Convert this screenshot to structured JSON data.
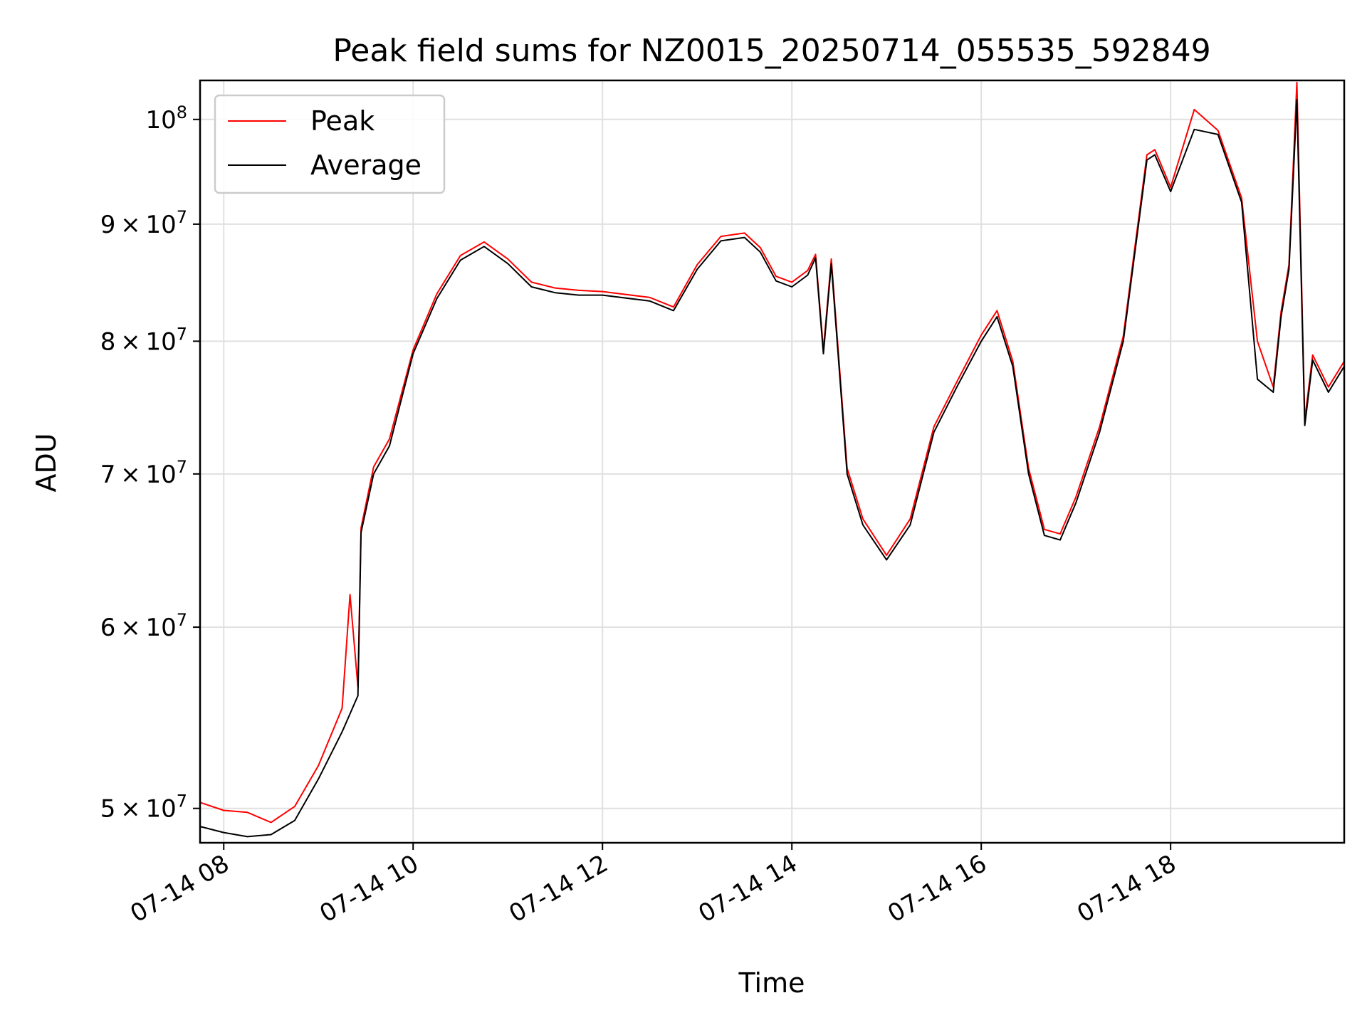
{
  "chart_data": {
    "type": "line",
    "title": "Peak field sums for NZ0015_20250714_055535_592849",
    "xlabel": "Time",
    "ylabel": "ADU",
    "y_scale": "log",
    "ylim": [
      48300000,
      104000000
    ],
    "xlim": [
      "2025-07-14 07:45",
      "2025-07-14 19:50"
    ],
    "grid": true,
    "legend_position": "top-left",
    "x_ticks": [
      {
        "label": "07-14 08",
        "value": "2025-07-14 08:00"
      },
      {
        "label": "07-14 10",
        "value": "2025-07-14 10:00"
      },
      {
        "label": "07-14 12",
        "value": "2025-07-14 12:00"
      },
      {
        "label": "07-14 14",
        "value": "2025-07-14 14:00"
      },
      {
        "label": "07-14 16",
        "value": "2025-07-14 16:00"
      },
      {
        "label": "07-14 18",
        "value": "2025-07-14 18:00"
      }
    ],
    "y_ticks": [
      {
        "value": 50000000,
        "mantissa": "5",
        "base": "10",
        "exp": "7"
      },
      {
        "value": 60000000,
        "mantissa": "6",
        "base": "10",
        "exp": "7"
      },
      {
        "value": 70000000,
        "mantissa": "7",
        "base": "10",
        "exp": "7"
      },
      {
        "value": 80000000,
        "mantissa": "8",
        "base": "10",
        "exp": "7"
      },
      {
        "value": 90000000,
        "mantissa": "9",
        "base": "10",
        "exp": "7"
      },
      {
        "value": 100000000,
        "mantissa": "",
        "base": "10",
        "exp": "8"
      }
    ],
    "series": [
      {
        "name": "Average",
        "color": "#000000",
        "x": [
          "2025-07-14 07:45",
          "2025-07-14 08:00",
          "2025-07-14 08:15",
          "2025-07-14 08:30",
          "2025-07-14 08:45",
          "2025-07-14 09:00",
          "2025-07-14 09:15",
          "2025-07-14 09:25",
          "2025-07-14 09:27",
          "2025-07-14 09:35",
          "2025-07-14 09:45",
          "2025-07-14 10:00",
          "2025-07-14 10:15",
          "2025-07-14 10:30",
          "2025-07-14 10:45",
          "2025-07-14 11:00",
          "2025-07-14 11:15",
          "2025-07-14 11:30",
          "2025-07-14 11:45",
          "2025-07-14 12:00",
          "2025-07-14 12:30",
          "2025-07-14 12:45",
          "2025-07-14 13:00",
          "2025-07-14 13:15",
          "2025-07-14 13:30",
          "2025-07-14 13:40",
          "2025-07-14 13:50",
          "2025-07-14 14:00",
          "2025-07-14 14:10",
          "2025-07-14 14:15",
          "2025-07-14 14:20",
          "2025-07-14 14:25",
          "2025-07-14 14:35",
          "2025-07-14 14:45",
          "2025-07-14 15:00",
          "2025-07-14 15:15",
          "2025-07-14 15:30",
          "2025-07-14 15:45",
          "2025-07-14 16:00",
          "2025-07-14 16:10",
          "2025-07-14 16:20",
          "2025-07-14 16:30",
          "2025-07-14 16:40",
          "2025-07-14 16:50",
          "2025-07-14 17:00",
          "2025-07-14 17:15",
          "2025-07-14 17:30",
          "2025-07-14 17:45",
          "2025-07-14 17:50",
          "2025-07-14 18:00",
          "2025-07-14 18:15",
          "2025-07-14 18:30",
          "2025-07-14 18:45",
          "2025-07-14 18:55",
          "2025-07-14 19:05",
          "2025-07-14 19:10",
          "2025-07-14 19:15",
          "2025-07-14 19:20",
          "2025-07-14 19:25",
          "2025-07-14 19:30",
          "2025-07-14 19:40",
          "2025-07-14 19:50"
        ],
        "values": [
          49100000,
          48800000,
          48600000,
          48700000,
          49400000,
          51500000,
          54000000,
          56000000,
          66000000,
          70000000,
          72000000,
          79000000,
          83500000,
          86800000,
          88000000,
          86500000,
          84500000,
          84000000,
          83800000,
          83800000,
          83300000,
          82500000,
          86000000,
          88500000,
          88800000,
          87500000,
          85000000,
          84500000,
          85500000,
          87000000,
          79000000,
          86500000,
          70000000,
          66500000,
          64200000,
          66500000,
          73000000,
          76500000,
          80000000,
          82000000,
          78000000,
          70000000,
          65800000,
          65500000,
          68000000,
          73000000,
          80000000,
          96000000,
          96500000,
          93000000,
          99000000,
          98500000,
          92000000,
          77000000,
          76000000,
          82000000,
          86000000,
          102000000,
          73500000,
          78500000,
          76000000,
          78000000
        ]
      },
      {
        "name": "Peak",
        "color": "#ff0000",
        "x": [
          "2025-07-14 07:45",
          "2025-07-14 08:00",
          "2025-07-14 08:15",
          "2025-07-14 08:30",
          "2025-07-14 08:45",
          "2025-07-14 09:00",
          "2025-07-14 09:15",
          "2025-07-14 09:20",
          "2025-07-14 09:25",
          "2025-07-14 09:27",
          "2025-07-14 09:35",
          "2025-07-14 09:45",
          "2025-07-14 10:00",
          "2025-07-14 10:15",
          "2025-07-14 10:30",
          "2025-07-14 10:45",
          "2025-07-14 11:00",
          "2025-07-14 11:15",
          "2025-07-14 11:30",
          "2025-07-14 11:45",
          "2025-07-14 12:00",
          "2025-07-14 12:30",
          "2025-07-14 12:45",
          "2025-07-14 13:00",
          "2025-07-14 13:15",
          "2025-07-14 13:30",
          "2025-07-14 13:40",
          "2025-07-14 13:50",
          "2025-07-14 14:00",
          "2025-07-14 14:10",
          "2025-07-14 14:15",
          "2025-07-14 14:20",
          "2025-07-14 14:25",
          "2025-07-14 14:35",
          "2025-07-14 14:45",
          "2025-07-14 15:00",
          "2025-07-14 15:15",
          "2025-07-14 15:30",
          "2025-07-14 15:45",
          "2025-07-14 16:00",
          "2025-07-14 16:10",
          "2025-07-14 16:20",
          "2025-07-14 16:30",
          "2025-07-14 16:40",
          "2025-07-14 16:50",
          "2025-07-14 17:00",
          "2025-07-14 17:15",
          "2025-07-14 17:30",
          "2025-07-14 17:45",
          "2025-07-14 17:50",
          "2025-07-14 18:00",
          "2025-07-14 18:15",
          "2025-07-14 18:30",
          "2025-07-14 18:45",
          "2025-07-14 18:55",
          "2025-07-14 19:05",
          "2025-07-14 19:10",
          "2025-07-14 19:15",
          "2025-07-14 19:20",
          "2025-07-14 19:25",
          "2025-07-14 19:30",
          "2025-07-14 19:40",
          "2025-07-14 19:50"
        ],
        "values": [
          50300000,
          49900000,
          49800000,
          49300000,
          50100000,
          52200000,
          55300000,
          62000000,
          56500000,
          66300000,
          70500000,
          72500000,
          79300000,
          83900000,
          87200000,
          88400000,
          86900000,
          84900000,
          84400000,
          84200000,
          84100000,
          83600000,
          82800000,
          86400000,
          88900000,
          89200000,
          87900000,
          85400000,
          84900000,
          85900000,
          87300000,
          79300000,
          86900000,
          70400000,
          66900000,
          64500000,
          66900000,
          73400000,
          76900000,
          80500000,
          82500000,
          78400000,
          70400000,
          66200000,
          65900000,
          68400000,
          73400000,
          80400000,
          96500000,
          97000000,
          93400000,
          101000000,
          98900000,
          92400000,
          80000000,
          76400000,
          82400000,
          86400000,
          103800000,
          73900000,
          78900000,
          76400000,
          78400000
        ]
      }
    ]
  }
}
